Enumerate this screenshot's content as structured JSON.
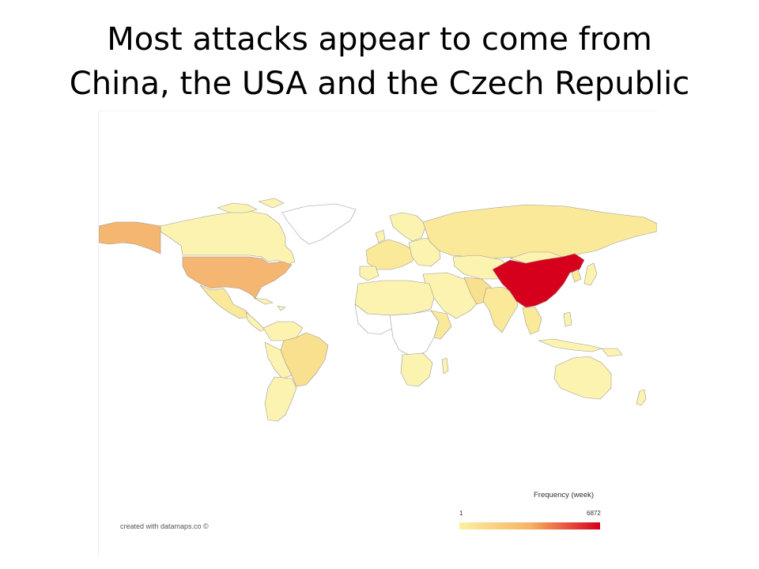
{
  "slide": {
    "title_line1": "Most attacks appear to come from",
    "title_line2": "China, the USA and the Czech Republic"
  },
  "map": {
    "credit": "created with datamaps.co ©",
    "legend": {
      "title": "Frequency (week)",
      "min_label": "1",
      "max_label": "6872",
      "colors": [
        "#fdf0a0",
        "#f7b365",
        "#d7001c"
      ]
    },
    "colors": {
      "ocean": "#ffffff",
      "border": "#999999",
      "no_data": "#ffffff",
      "low": "#fbe99a",
      "mid_low": "#f9d98a",
      "medium": "#f5b672",
      "high": "#d7001c"
    },
    "highlighted_regions": [
      {
        "name": "China",
        "level": "high"
      },
      {
        "name": "USA",
        "level": "medium"
      },
      {
        "name": "Alaska",
        "level": "medium"
      }
    ]
  }
}
